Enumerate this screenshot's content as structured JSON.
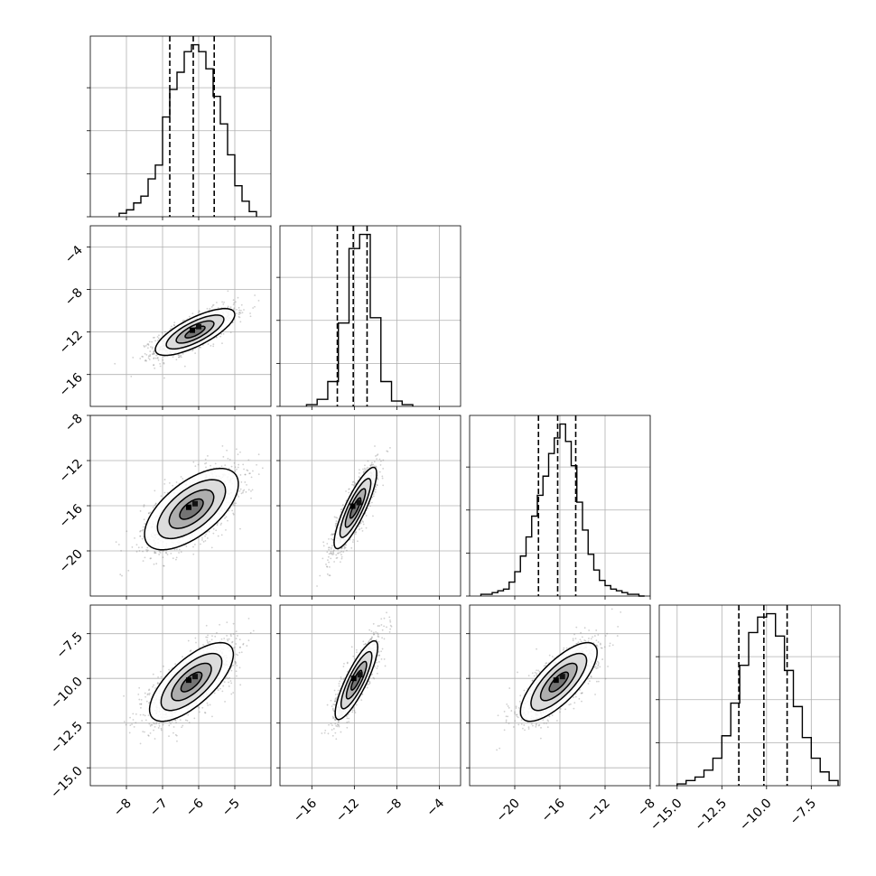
{
  "chart_data": {
    "type": "corner",
    "title": "",
    "grid": true,
    "parameters": [
      {
        "label": "",
        "range": [
          -9,
          -4
        ],
        "ticks": [
          -8,
          -7,
          -6,
          -5
        ],
        "tick_labels": [
          "−8",
          "−7",
          "−6",
          "−5"
        ],
        "quantiles": [
          -6.8,
          -6.15,
          -5.57
        ],
        "hist_bins": [
          -8.2,
          -8.0,
          -7.8,
          -7.6,
          -7.4,
          -7.2,
          -7.0,
          -6.8,
          -6.6,
          -6.4,
          -6.2,
          -6.0,
          -5.8,
          -5.6,
          -5.4,
          -5.2,
          -5.0,
          -4.8,
          -4.6,
          -4.4
        ],
        "hist_counts": [
          2,
          4,
          8,
          12,
          22,
          30,
          58,
          74,
          84,
          96,
          100,
          96,
          86,
          70,
          54,
          36,
          18,
          9,
          3
        ]
      },
      {
        "label": "",
        "range": [
          -19,
          -2
        ],
        "ticks": [
          -16,
          -12,
          -8,
          -4
        ],
        "tick_labels": [
          "−16",
          "−12",
          "−8",
          "−4"
        ],
        "quantiles": [
          -13.6,
          -12.1,
          -10.8
        ],
        "hist_bins": [
          -16.5,
          -15.5,
          -14.5,
          -13.5,
          -12.5,
          -11.5,
          -10.5,
          -9.5,
          -8.5,
          -7.5,
          -6.5
        ],
        "hist_counts": [
          1,
          4,
          14,
          47,
          89,
          97,
          50,
          14,
          3,
          1
        ]
      },
      {
        "label": "",
        "range": [
          -24,
          -8
        ],
        "ticks": [
          -20,
          -16,
          -12,
          -8
        ],
        "tick_labels": [
          "−20",
          "−16",
          "−12",
          "−8"
        ],
        "quantiles": [
          -17.9,
          -16.2,
          -14.6
        ],
        "hist_bins": [
          -23.0,
          -22.5,
          -22.0,
          -21.5,
          -21.0,
          -20.5,
          -20.0,
          -19.5,
          -19.0,
          -18.5,
          -18.0,
          -17.5,
          -17.0,
          -16.5,
          -16.0,
          -15.5,
          -15.0,
          -14.5,
          -14.0,
          -13.5,
          -13.0,
          -12.5,
          -12.0,
          -11.5,
          -11.0,
          -10.5,
          -10.0,
          -9.5,
          -9.0,
          -8.5
        ],
        "hist_counts": [
          1,
          1,
          2,
          3,
          4,
          8,
          14,
          23,
          34,
          46,
          58,
          69,
          82,
          91,
          99,
          89,
          75,
          54,
          38,
          24,
          15,
          9,
          6,
          4,
          3,
          2,
          1,
          1,
          0
        ]
      },
      {
        "label": "",
        "range": [
          -16,
          -5.9
        ],
        "ticks": [
          -15.0,
          -12.5,
          -10.0,
          -7.5
        ],
        "tick_labels": [
          "−15.0",
          "−12.5",
          "−10.0",
          "−7.5"
        ],
        "quantiles": [
          -11.55,
          -10.15,
          -8.85
        ],
        "hist_bins": [
          -15.0,
          -14.5,
          -14.0,
          -13.5,
          -13.0,
          -12.5,
          -12.0,
          -11.5,
          -11.0,
          -10.5,
          -10.0,
          -9.5,
          -9.0,
          -8.5,
          -8.0,
          -7.5,
          -7.0,
          -6.5,
          -6.0
        ],
        "hist_counts": [
          1,
          3,
          5,
          9,
          16,
          29,
          48,
          70,
          89,
          98,
          100,
          87,
          67,
          46,
          28,
          16,
          8,
          3
        ]
      }
    ],
    "pairs": [
      {
        "x": 0,
        "y": 1,
        "mean": [
          -6.1,
          -12.0
        ],
        "sd": [
          0.55,
          1.1
        ],
        "corr": 0.75
      },
      {
        "x": 0,
        "y": 2,
        "mean": [
          -6.2,
          -16.3
        ],
        "sd": [
          0.65,
          1.8
        ],
        "corr": 0.62
      },
      {
        "x": 1,
        "y": 2,
        "mean": [
          -11.9,
          -16.2
        ],
        "sd": [
          1.0,
          1.8
        ],
        "corr": 0.85
      },
      {
        "x": 0,
        "y": 3,
        "mean": [
          -6.2,
          -10.2
        ],
        "sd": [
          0.58,
          1.1
        ],
        "corr": 0.7
      },
      {
        "x": 1,
        "y": 3,
        "mean": [
          -11.8,
          -10.1
        ],
        "sd": [
          1.0,
          1.1
        ],
        "corr": 0.84
      },
      {
        "x": 2,
        "y": 3,
        "mean": [
          -16.1,
          -10.2
        ],
        "sd": [
          1.7,
          1.1
        ],
        "corr": 0.75
      }
    ]
  }
}
